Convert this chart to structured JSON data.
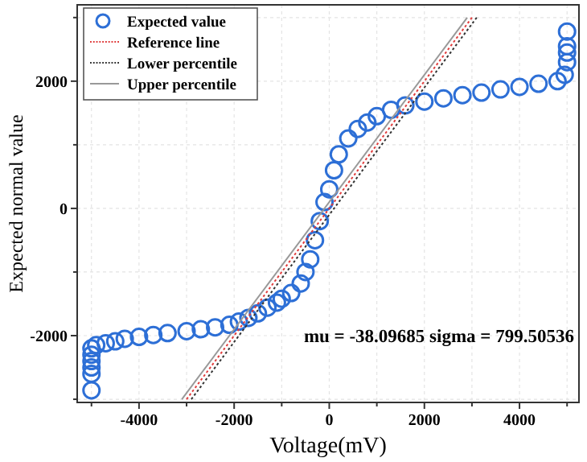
{
  "chart_data": {
    "type": "scatter",
    "xlabel": "Voltage(mV)",
    "ylabel": "Expected normal value",
    "xlim": [
      -5300,
      5250
    ],
    "ylim": [
      -3050,
      3200
    ],
    "xticks": [
      {
        "value": -5000,
        "label": null
      },
      -4000,
      {
        "value": -3000,
        "label": null
      },
      -2000,
      {
        "value": -1000,
        "label": null
      },
      0,
      {
        "value": 1000,
        "label": null
      },
      2000,
      {
        "value": 3000,
        "label": null
      },
      4000,
      {
        "value": 5000,
        "label": null
      }
    ],
    "yticks": [
      {
        "value": -3000,
        "label": null
      },
      -2000,
      {
        "value": -1000,
        "label": null
      },
      0,
      {
        "value": 1000,
        "label": null
      },
      2000,
      {
        "value": 3000,
        "label": null
      }
    ],
    "grid": true,
    "legend": "top left",
    "annotations": [
      "mu = -38.09685  sigma = 799.50536"
    ],
    "series": [
      {
        "name": "Expected value",
        "marker": "circle",
        "color": "#2d6fd6",
        "x": [
          -5000,
          -5000,
          -5000,
          -5000,
          -5000,
          -5000,
          -4900,
          -4700,
          -4500,
          -4300,
          -4000,
          -3700,
          -3400,
          -3000,
          -2700,
          -2400,
          -2100,
          -1900,
          -1700,
          -1500,
          -1300,
          -1100,
          -1000,
          -800,
          -600,
          -500,
          -400,
          -300,
          -200,
          -100,
          0,
          100,
          200,
          400,
          600,
          800,
          1000,
          1300,
          1600,
          2000,
          2400,
          2800,
          3200,
          3600,
          4000,
          4400,
          4800,
          4950,
          5000,
          5000,
          5000,
          5000
        ],
        "values": [
          -2860,
          -2600,
          -2500,
          -2400,
          -2300,
          -2200,
          -2150,
          -2120,
          -2090,
          -2050,
          -2020,
          -1990,
          -1960,
          -1930,
          -1900,
          -1870,
          -1830,
          -1780,
          -1720,
          -1650,
          -1560,
          -1480,
          -1420,
          -1330,
          -1180,
          -1000,
          -800,
          -500,
          -200,
          100,
          300,
          600,
          850,
          1100,
          1250,
          1350,
          1450,
          1550,
          1620,
          1680,
          1730,
          1780,
          1820,
          1870,
          1910,
          1960,
          2000,
          2100,
          2300,
          2450,
          2550,
          2780
        ]
      },
      {
        "name": "Reference line",
        "type": "line",
        "line_style": "dotted",
        "color": "#e03c3c",
        "x": [
          -3000,
          3000
        ],
        "values": [
          -3000,
          3000
        ]
      },
      {
        "name": "Lower percentile",
        "type": "line",
        "line_style": "dotted",
        "color": "#333333",
        "x": [
          -2900,
          3100
        ],
        "values": [
          -3000,
          3000
        ]
      },
      {
        "name": "Upper percentile",
        "type": "line",
        "line_style": "solid",
        "color": "#999999",
        "x": [
          -3100,
          2900
        ],
        "values": [
          -3000,
          3000
        ]
      }
    ]
  }
}
